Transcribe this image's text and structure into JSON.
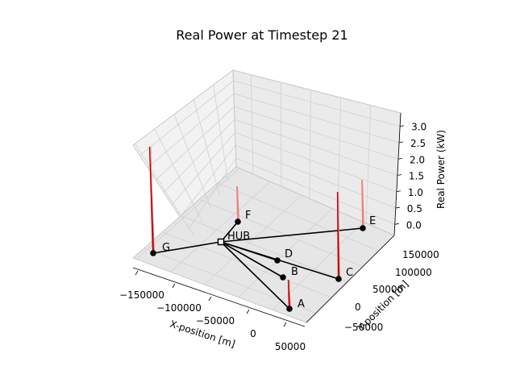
{
  "chart_data": {
    "type": "3d-stem-network",
    "title": "Real Power at Timestep 21",
    "xlabel": "X-position [m]",
    "ylabel": "Y-position [m]",
    "zlabel": "Real Power (kW)",
    "x_ticks": [
      "−150000",
      "−100000",
      "−50000",
      "0",
      "50000"
    ],
    "y_ticks": [
      "−50000",
      "0",
      "50000",
      "100000",
      "150000"
    ],
    "z_ticks": [
      "0.0",
      "0.5",
      "1.0",
      "1.5",
      "2.0",
      "2.5",
      "3.0"
    ],
    "hub": {
      "name": "HUB"
    },
    "nodes": [
      {
        "name": "A",
        "power": 0.9
      },
      {
        "name": "B",
        "power": 0.0
      },
      {
        "name": "C",
        "power": 2.7
      },
      {
        "name": "D",
        "power": 0.0
      },
      {
        "name": "E",
        "power": 1.5
      },
      {
        "name": "F",
        "power": 1.1
      },
      {
        "name": "G",
        "power": 3.3
      }
    ],
    "colors": {
      "stem": "#b30000",
      "stem_light": "#f08080",
      "network": "#000000",
      "grid": "#d0d0d0"
    }
  }
}
